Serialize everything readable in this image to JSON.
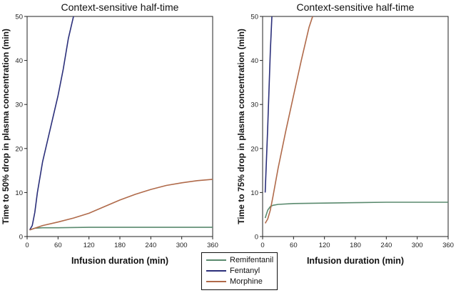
{
  "colors": {
    "remifentanil": "#5a8a6e",
    "fentanyl": "#2b2f7a",
    "morphine": "#b06a4a",
    "axis": "#222222"
  },
  "legend": {
    "position": "bottom-center",
    "items": [
      "Remifentanil",
      "Fentanyl",
      "Morphine"
    ]
  },
  "chart_data": [
    {
      "type": "line",
      "title": "Context-sensitive half-time",
      "xlabel": "Infusion duration (min)",
      "ylabel": "Time to 50% drop in plasma concentration (min)",
      "xlim": [
        0,
        360
      ],
      "ylim": [
        0,
        50
      ],
      "xticks": [
        "0",
        "60",
        "120",
        "180",
        "240",
        "300",
        "360"
      ],
      "yticks": [
        "0",
        "10",
        "20",
        "30",
        "40",
        "50"
      ],
      "grid": false,
      "series": [
        {
          "name": "Remifentanil",
          "x": [
            5,
            15,
            30,
            60,
            120,
            180,
            240,
            300,
            360
          ],
          "y": [
            1.5,
            1.9,
            2.0,
            2.0,
            2.1,
            2.1,
            2.1,
            2.1,
            2.1
          ]
        },
        {
          "name": "Fentanyl",
          "x": [
            5,
            10,
            15,
            20,
            30,
            40,
            50,
            60,
            70,
            80,
            90
          ],
          "y": [
            1.5,
            2.5,
            5.5,
            10,
            17,
            22,
            27,
            32,
            38,
            45,
            50
          ]
        },
        {
          "name": "Morphine",
          "x": [
            5,
            30,
            60,
            90,
            120,
            150,
            180,
            210,
            240,
            270,
            300,
            330,
            360
          ],
          "y": [
            1.5,
            2.5,
            3.3,
            4.2,
            5.3,
            6.8,
            8.3,
            9.6,
            10.7,
            11.6,
            12.2,
            12.7,
            13.0
          ]
        }
      ]
    },
    {
      "type": "line",
      "title": "Context-sensitive half-time",
      "xlabel": "Infusion duration (min)",
      "ylabel": "Time to 75% drop in plasma concentration (min)",
      "xlim": [
        0,
        360
      ],
      "ylim": [
        0,
        50
      ],
      "xticks": [
        "0",
        "60",
        "120",
        "180",
        "240",
        "300",
        "360"
      ],
      "yticks": [
        "0",
        "10",
        "20",
        "30",
        "40",
        "50"
      ],
      "grid": false,
      "series": [
        {
          "name": "Remifentanil",
          "x": [
            5,
            10,
            15,
            20,
            30,
            60,
            120,
            180,
            240,
            300,
            360
          ],
          "y": [
            4.2,
            6.0,
            6.8,
            7.1,
            7.3,
            7.5,
            7.6,
            7.7,
            7.8,
            7.8,
            7.8
          ]
        },
        {
          "name": "Fentanyl",
          "x": [
            5,
            10,
            15,
            18
          ],
          "y": [
            10,
            25,
            42,
            50
          ]
        },
        {
          "name": "Morphine",
          "x": [
            5,
            10,
            15,
            20,
            30,
            45,
            60,
            75,
            90,
            97
          ],
          "y": [
            3,
            4,
            6,
            9,
            15.5,
            24,
            32,
            40,
            47.5,
            50
          ]
        }
      ]
    }
  ]
}
